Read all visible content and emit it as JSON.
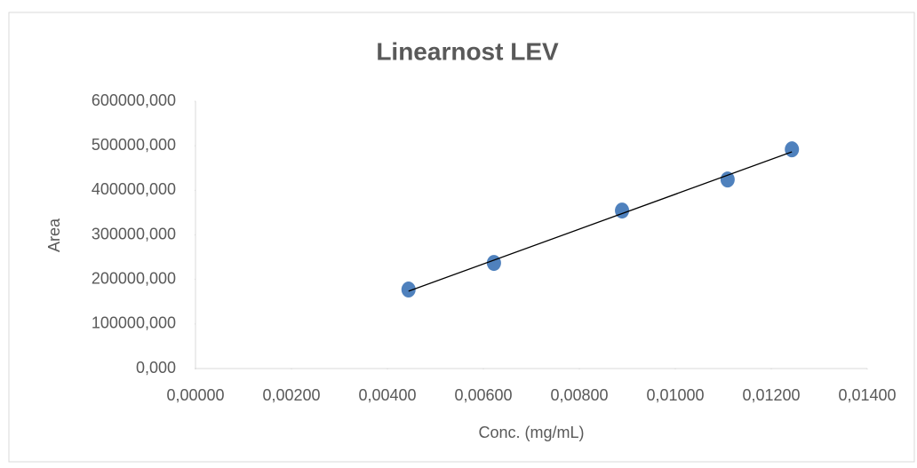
{
  "chart_data": {
    "type": "scatter",
    "title": "Linearnost LEV",
    "x_label": "Conc. (mg/mL)",
    "y_label": "Area",
    "x": [
      0.00444,
      0.00622,
      0.00889,
      0.01109,
      0.01243
    ],
    "values": [
      177300,
      237000,
      354600,
      424300,
      492000
    ],
    "color": "#4f81bd",
    "trendline": true,
    "grid": false,
    "xlim": [
      0,
      0.014
    ],
    "xticks": [
      {
        "value": 0,
        "label": "0,00000"
      },
      {
        "value": 0.002,
        "label": "0,00200"
      },
      {
        "value": 0.004,
        "label": "0,00400"
      },
      {
        "value": 0.006,
        "label": "0,00600"
      },
      {
        "value": 0.008,
        "label": "0,00800"
      },
      {
        "value": 0.01,
        "label": "0,01000"
      },
      {
        "value": 0.012,
        "label": "0,01200"
      },
      {
        "value": 0.014,
        "label": "0,01400"
      }
    ],
    "ylim": [
      0,
      600000
    ],
    "yticks": [
      {
        "value": 0,
        "label": "0,000"
      },
      {
        "value": 100000,
        "label": "100000,000"
      },
      {
        "value": 200000,
        "label": "200000,000"
      },
      {
        "value": 300000,
        "label": "300000,000"
      },
      {
        "value": 400000,
        "label": "400000,000"
      },
      {
        "value": 500000,
        "label": "500000,000"
      },
      {
        "value": 600000,
        "label": "600000,000"
      }
    ]
  }
}
